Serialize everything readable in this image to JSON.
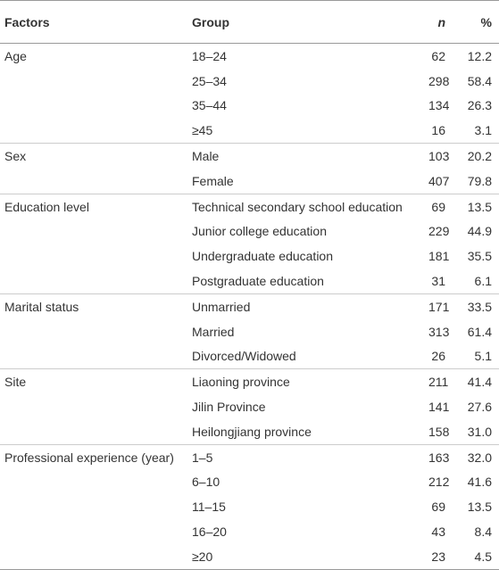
{
  "table": {
    "header": [
      "Factors",
      "Group",
      "n",
      "%"
    ],
    "groups": [
      {
        "factor": "Age",
        "rows": [
          [
            "18–24",
            "62",
            "12.2"
          ],
          [
            "25–34",
            "298",
            "58.4"
          ],
          [
            "35–44",
            "134",
            "26.3"
          ],
          [
            "≥45",
            "16",
            "3.1"
          ]
        ]
      },
      {
        "factor": "Sex",
        "rows": [
          [
            "Male",
            "103",
            "20.2"
          ],
          [
            "Female",
            "407",
            "79.8"
          ]
        ]
      },
      {
        "factor": "Education level",
        "rows": [
          [
            "Technical secondary school education",
            "69",
            "13.5"
          ],
          [
            "Junior college education",
            "229",
            "44.9"
          ],
          [
            "Undergraduate education",
            "181",
            "35.5"
          ],
          [
            "Postgraduate education",
            "31",
            "6.1"
          ]
        ]
      },
      {
        "factor": "Marital status",
        "rows": [
          [
            "Unmarried",
            "171",
            "33.5"
          ],
          [
            "Married",
            "313",
            "61.4"
          ],
          [
            "Divorced/Widowed",
            "26",
            "5.1"
          ]
        ]
      },
      {
        "factor": "Site",
        "rows": [
          [
            "Liaoning province",
            "211",
            "41.4"
          ],
          [
            "Jilin Province",
            "141",
            "27.6"
          ],
          [
            "Heilongjiang province",
            "158",
            "31.0"
          ]
        ]
      },
      {
        "factor": "Professional experience (year)",
        "rows": [
          [
            "1–5",
            "163",
            "32.0"
          ],
          [
            "6–10",
            "212",
            "41.6"
          ],
          [
            "11–15",
            "69",
            "13.5"
          ],
          [
            "16–20",
            "43",
            "8.4"
          ],
          [
            "≥20",
            "23",
            "4.5"
          ]
        ]
      }
    ]
  }
}
